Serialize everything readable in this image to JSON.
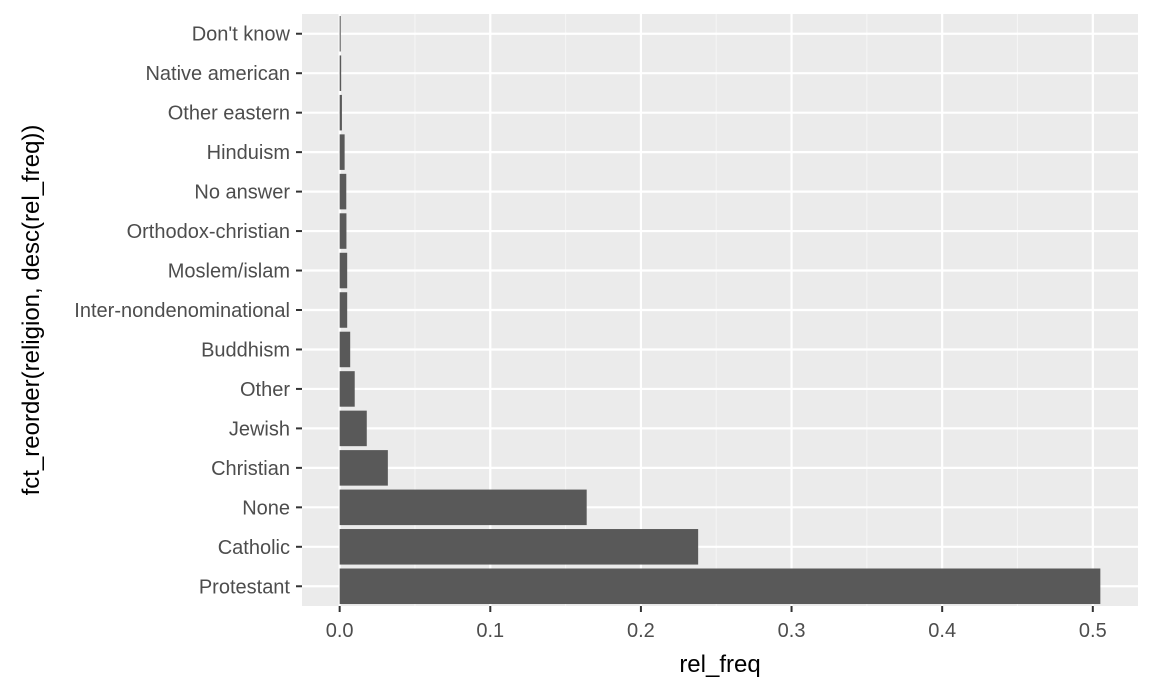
{
  "chart_data": {
    "type": "bar",
    "orientation": "horizontal",
    "xlabel": "rel_freq",
    "ylabel": "fct_reorder(religion, desc(rel_freq))",
    "xlim": [
      -0.025,
      0.53
    ],
    "x_ticks": [
      0.0,
      0.1,
      0.2,
      0.3,
      0.4,
      0.5
    ],
    "x_tick_labels": [
      "0.0",
      "0.1",
      "0.2",
      "0.3",
      "0.4",
      "0.5"
    ],
    "grid": true,
    "categories": [
      "Protestant",
      "Catholic",
      "None",
      "Christian",
      "Jewish",
      "Other",
      "Buddhism",
      "Inter-nondenominational",
      "Moslem/islam",
      "Orthodox-christian",
      "No answer",
      "Hinduism",
      "Other eastern",
      "Native american",
      "Don't know"
    ],
    "values": [
      0.505,
      0.238,
      0.164,
      0.032,
      0.018,
      0.01,
      0.007,
      0.005,
      0.005,
      0.0045,
      0.0044,
      0.0033,
      0.0015,
      0.001,
      0.0007
    ],
    "colors": {
      "bar": "#595959",
      "panel": "#ebebeb",
      "grid_major": "#ffffff",
      "grid_minor": "#f5f5f5"
    }
  }
}
